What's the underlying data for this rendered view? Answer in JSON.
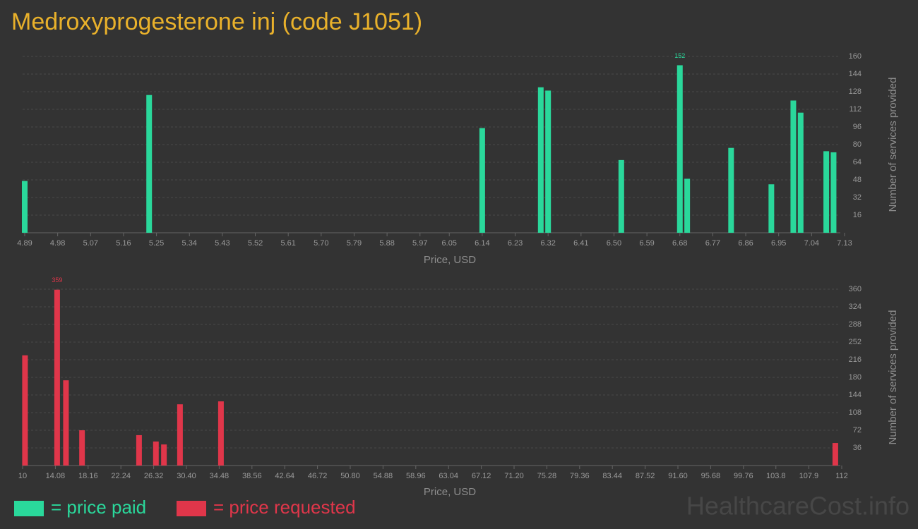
{
  "title": "Medroxyprogesterone inj (code J1051)",
  "watermark": "HealthcareCost.info",
  "chart_data": [
    {
      "type": "bar",
      "xlabel": "Price, USD",
      "ylabel": "Number of services provided",
      "x": [
        4.89,
        5.23,
        6.14,
        6.3,
        6.32,
        6.52,
        6.68,
        6.7,
        6.82,
        6.93,
        6.99,
        7.01,
        7.08,
        7.1
      ],
      "series": [
        {
          "name": "= price paid",
          "color": "#2ad89b",
          "values": [
            47,
            125,
            95,
            132,
            129,
            66,
            152,
            49,
            77,
            44,
            120,
            109,
            74,
            73
          ]
        }
      ],
      "xlim": [
        4.89,
        7.13
      ],
      "xticks": [
        4.89,
        4.98,
        5.07,
        5.16,
        5.25,
        5.34,
        5.43,
        5.52,
        5.61,
        {
          "value": 5.7,
          "label": "5.70"
        },
        5.79,
        5.88,
        5.97,
        6.05,
        6.14,
        6.23,
        6.32,
        6.41,
        {
          "value": 6.5,
          "label": "6.50"
        },
        6.59,
        6.68,
        6.77,
        6.86,
        6.95,
        7.04,
        7.13
      ],
      "ylim": [
        0,
        160
      ],
      "yticks": [
        16,
        32,
        48,
        64,
        80,
        96,
        112,
        128,
        144,
        160
      ],
      "grid": true
    },
    {
      "type": "bar",
      "xlabel": "Price, USD",
      "ylabel": "Number of services provided",
      "x": [
        10.3,
        14.3,
        15.4,
        17.4,
        24.5,
        26.6,
        27.6,
        29.6,
        34.7,
        111.2
      ],
      "series": [
        {
          "name": "= price requested",
          "color": "#e0364a",
          "values": [
            225,
            359,
            174,
            72,
            62,
            49,
            43,
            125,
            131,
            46
          ]
        }
      ],
      "xlim": [
        10,
        112
      ],
      "xticks": [
        10,
        14.08,
        18.16,
        22.24,
        26.32,
        {
          "value": 30.4,
          "label": "30.40"
        },
        34.48,
        38.56,
        42.64,
        46.72,
        {
          "value": 50.8,
          "label": "50.80"
        },
        54.88,
        58.96,
        63.04,
        67.12,
        {
          "value": 71.2,
          "label": "71.20"
        },
        75.28,
        79.36,
        83.44,
        87.52,
        {
          "value": 91.6,
          "label": "91.60"
        },
        95.68,
        99.76,
        103.8,
        107.9,
        112
      ],
      "ylim": [
        0,
        360
      ],
      "yticks": [
        36,
        72,
        108,
        144,
        180,
        216,
        252,
        288,
        324,
        360
      ],
      "grid": true
    }
  ]
}
